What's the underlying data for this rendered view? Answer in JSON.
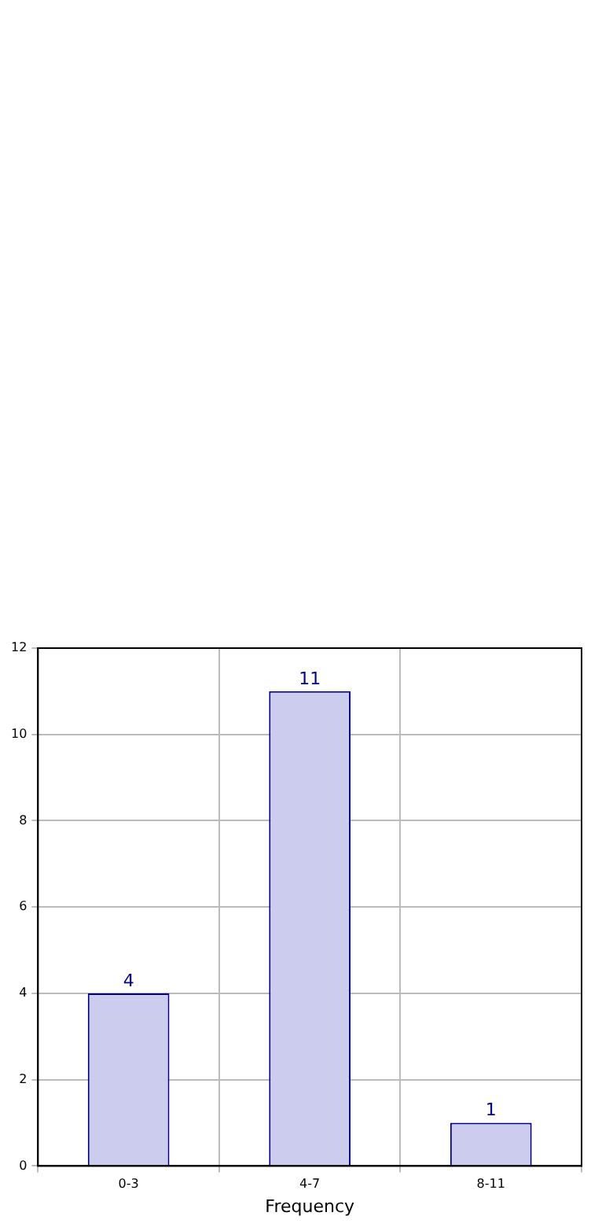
{
  "chart_data": {
    "type": "bar",
    "xlabel": "Frequency",
    "categories": [
      "0-3",
      "4-7",
      "8-11"
    ],
    "values": [
      4,
      11,
      1
    ],
    "color": "#ccccee",
    "ylim": [
      0,
      12
    ],
    "yticks": [
      0,
      2,
      4,
      6,
      8,
      10,
      12
    ],
    "grid": true,
    "data_labels": true,
    "legend": false
  }
}
